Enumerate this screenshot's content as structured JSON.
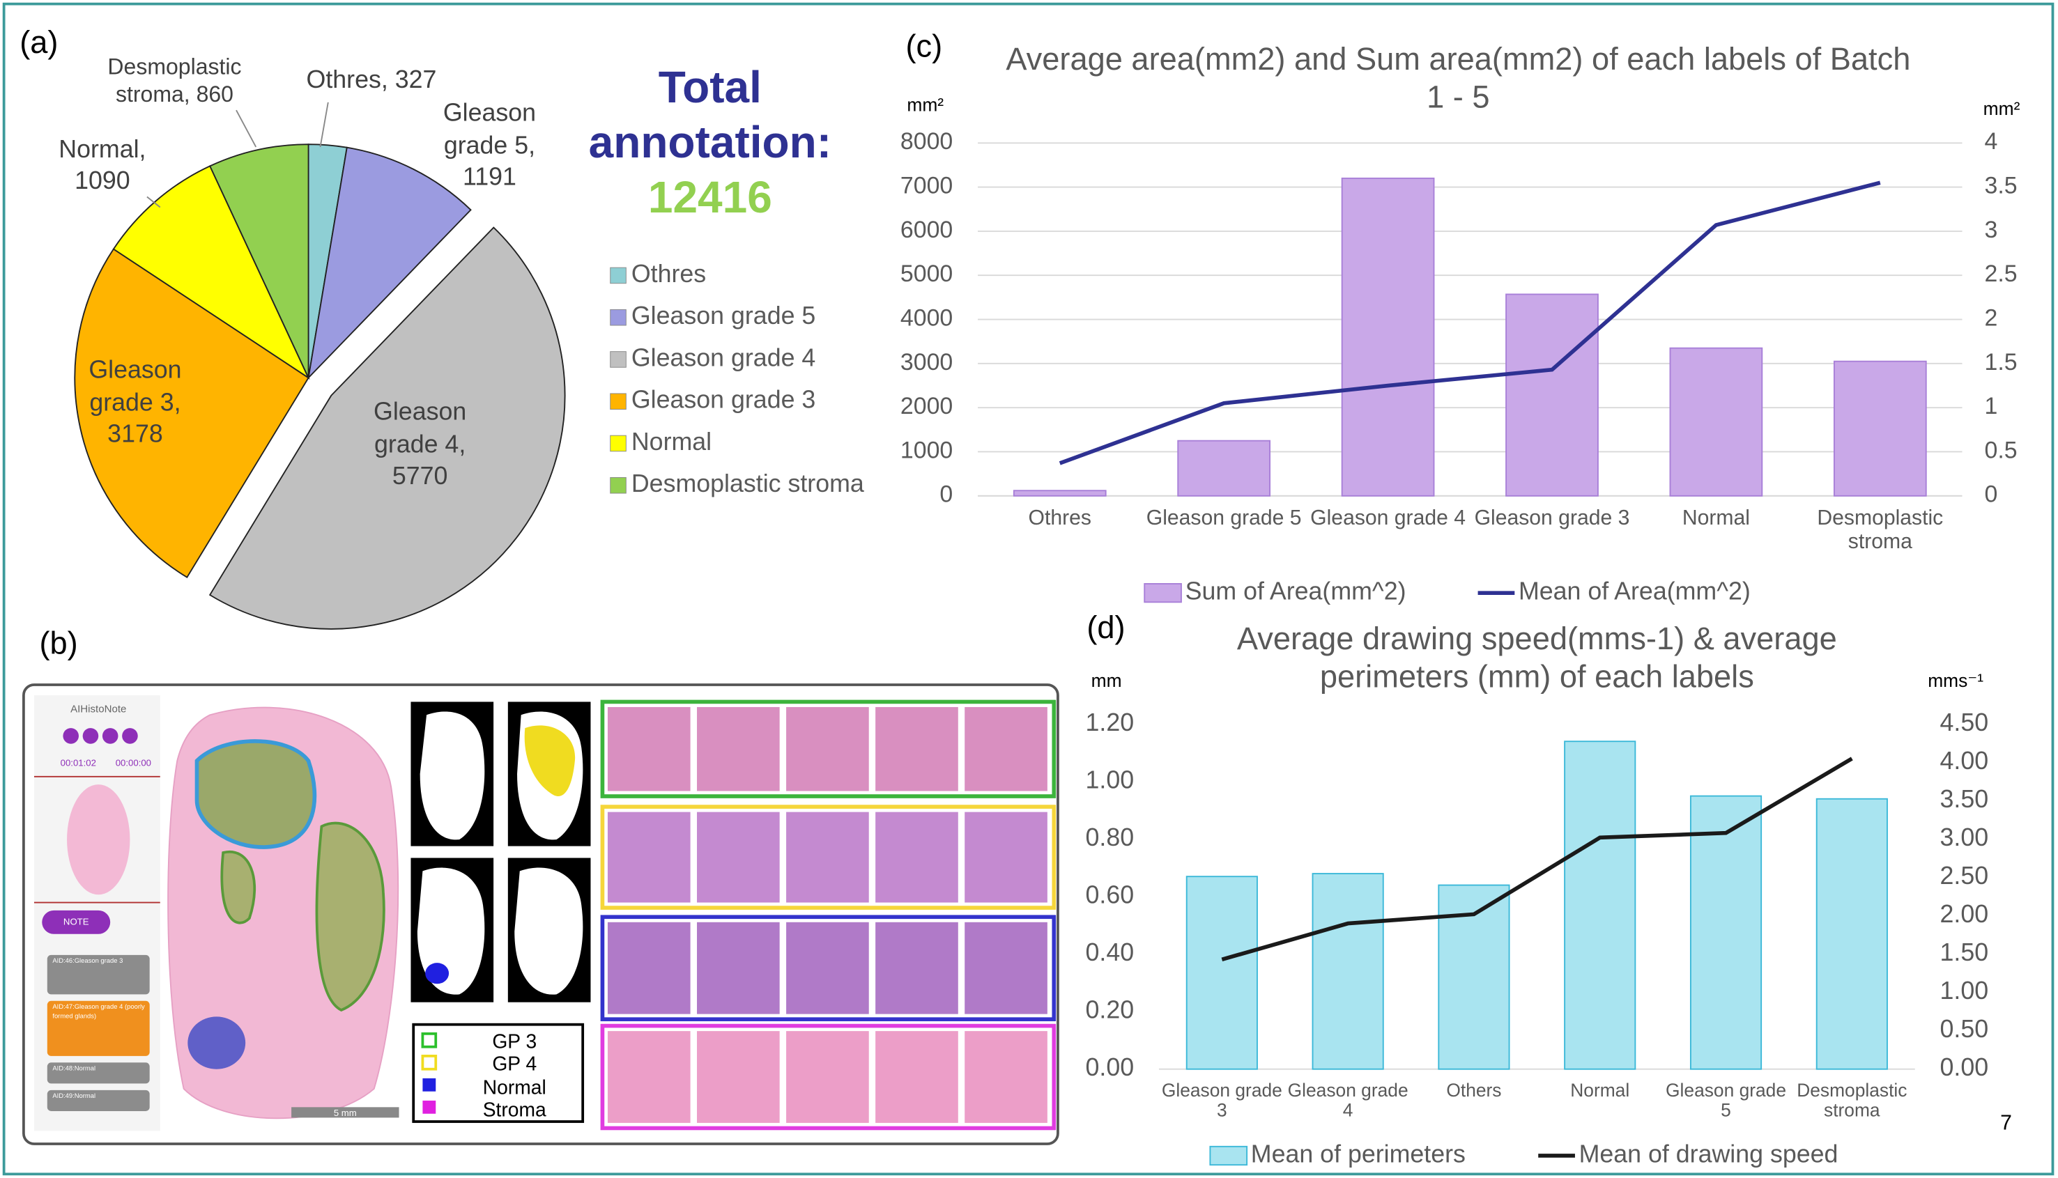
{
  "panel_labels": [
    "(a)",
    "(b)",
    "(c)",
    "(d)"
  ],
  "page_number": "7",
  "total_annotation": {
    "label": [
      "Total",
      "annotation:"
    ],
    "value": 12416
  },
  "panel_b": {
    "app_title": "AIHistoNote",
    "timer": [
      "00:01:02",
      "00:00:00"
    ],
    "note_button": "NOTE",
    "annotations": [
      "AID:46:Gleason grade 3",
      "AID:47:Gleason grade 4 (poorly formed glands)",
      "AID:48:Normal",
      "AID:49:Normal"
    ],
    "scale_bar": "5 mm",
    "legend": [
      "GP 3",
      "GP 4",
      "Normal",
      "Stroma"
    ]
  },
  "chart_data": [
    {
      "type": "pie",
      "categories": [
        "Othres",
        "Gleason grade 5",
        "Gleason grade 4",
        "Gleason grade 3",
        "Normal",
        "Desmoplastic stroma"
      ],
      "values": [
        327,
        1191,
        5770,
        3178,
        1090,
        860
      ],
      "value_labels": [
        [
          "Othres, 327"
        ],
        [
          "Gleason",
          "grade 5,",
          "1191"
        ],
        [
          "Gleason",
          "grade 4,",
          "5770"
        ],
        [
          "Gleason",
          "grade 3,",
          "3178"
        ],
        [
          "Normal,",
          "1090"
        ],
        [
          "Desmoplastic",
          "stroma, 860"
        ]
      ],
      "colors": [
        "#8ecfd4",
        "#9b9be0",
        "#c0c0c0",
        "#ffb400",
        "#ffff00",
        "#92d050"
      ],
      "exploded": [
        false,
        false,
        true,
        false,
        false,
        false
      ],
      "legend": "right"
    },
    {
      "type": "combo",
      "title": "Average area(mm2) and Sum area(mm2) of each labels of Batch 1 - 5",
      "y_label": "mm²",
      "y2_label": "mm²",
      "categories": [
        "Othres",
        "Gleason grade 5",
        "Gleason grade 4",
        "Gleason grade 3",
        "Normal",
        "Desmoplastic stroma"
      ],
      "series": [
        {
          "name": "Sum of Area(mm^2)",
          "type": "bar",
          "color": "#c9a8e8",
          "stroke": "#a87fd8",
          "values": [
            120,
            1250,
            7200,
            4570,
            3350,
            3050
          ]
        },
        {
          "name": "Mean of Area(mm^2)",
          "type": "line",
          "color": "#2e3192",
          "axis": "y2",
          "values": [
            0.37,
            1.05,
            1.25,
            1.43,
            3.07,
            3.55
          ]
        }
      ],
      "ylim": [
        0,
        8000
      ],
      "yticks": [
        0,
        1000,
        2000,
        3000,
        4000,
        5000,
        6000,
        7000,
        8000
      ],
      "y2lim": [
        0,
        4
      ],
      "y2ticks": [
        0,
        0.5,
        1,
        1.5,
        2,
        2.5,
        3,
        3.5,
        4
      ],
      "grid": true,
      "legend": "bottom"
    },
    {
      "type": "combo",
      "title": "Average drawing speed(mms-1) & average perimeters (mm) of each labels",
      "y_label": "mm",
      "y2_label": "mms⁻¹",
      "categories": [
        "Gleason grade 3",
        "Gleason grade 4",
        "Others",
        "Normal",
        "Gleason grade 5",
        "Desmoplastic stroma"
      ],
      "series": [
        {
          "name": "Mean of perimeters",
          "type": "bar",
          "color": "#a9e4f0",
          "stroke": "#3bb8d8",
          "values": [
            0.67,
            0.68,
            0.64,
            1.14,
            0.95,
            0.94
          ]
        },
        {
          "name": "Mean of drawing speed",
          "type": "line",
          "color": "#1a1a1a",
          "axis": "y2",
          "values": [
            1.43,
            1.9,
            2.02,
            3.02,
            3.08,
            4.05
          ]
        }
      ],
      "ylim": [
        0,
        1.2
      ],
      "yticks": [
        {
          "value": 0,
          "label": "0.00"
        },
        {
          "value": 0.2,
          "label": "0.20"
        },
        {
          "value": 0.4,
          "label": "0.40"
        },
        {
          "value": 0.6,
          "label": "0.60"
        },
        {
          "value": 0.8,
          "label": "0.80"
        },
        {
          "value": 1,
          "label": "1.00"
        },
        {
          "value": 1.2,
          "label": "1.20"
        }
      ],
      "y2lim": [
        0,
        4.5
      ],
      "y2ticks": [
        {
          "value": 0,
          "label": "0.00"
        },
        {
          "value": 0.5,
          "label": "0.50"
        },
        {
          "value": 1,
          "label": "1.00"
        },
        {
          "value": 1.5,
          "label": "1.50"
        },
        {
          "value": 2,
          "label": "2.00"
        },
        {
          "value": 2.5,
          "label": "2.50"
        },
        {
          "value": 3,
          "label": "3.00"
        },
        {
          "value": 3.5,
          "label": "3.50"
        },
        {
          "value": 4,
          "label": "4.00"
        },
        {
          "value": 4.5,
          "label": "4.50"
        }
      ],
      "grid": false,
      "legend": "bottom"
    }
  ]
}
